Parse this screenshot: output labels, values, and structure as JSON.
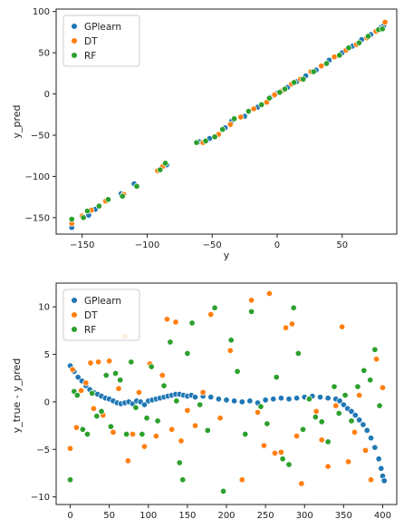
{
  "colors": {
    "GPlearn": "#1f77b4",
    "DT": "#ff7f0e",
    "RF": "#2ca02c"
  },
  "chart_data": [
    {
      "type": "scatter",
      "xlabel": "y",
      "ylabel": "y_pred",
      "xlim": [
        -170,
        92
      ],
      "ylim": [
        -170,
        103
      ],
      "xticks": [
        -150,
        -100,
        -50,
        0,
        50
      ],
      "yticks": [
        -150,
        -100,
        -50,
        0,
        50,
        100
      ],
      "xtick_labels": [
        "−150",
        "−100",
        "−50",
        "0",
        "50"
      ],
      "ytick_labels": [
        "−150",
        "−100",
        "−50",
        "0",
        "50",
        "100"
      ],
      "legend": {
        "placement": "top-left",
        "entries": [
          "GPlearn",
          "DT",
          "RF"
        ]
      },
      "series": [
        {
          "name": "GPlearn",
          "points": [
            [
              -158,
              -162
            ],
            [
              -145,
              -147
            ],
            [
              -140,
              -140
            ],
            [
              -120,
              -121
            ],
            [
              -110,
              -109
            ],
            [
              -85,
              -86
            ],
            [
              -60,
              -58
            ],
            [
              -52,
              -54
            ],
            [
              -40,
              -41
            ],
            [
              -35,
              -33
            ],
            [
              -25,
              -27
            ],
            [
              -15,
              -16
            ],
            [
              -5,
              -4
            ],
            [
              0,
              1
            ],
            [
              8,
              8
            ],
            [
              15,
              15
            ],
            [
              22,
              22
            ],
            [
              30,
              29
            ],
            [
              40,
              41
            ],
            [
              50,
              50
            ],
            [
              58,
              58
            ],
            [
              65,
              66
            ],
            [
              72,
              72
            ],
            [
              80,
              81
            ],
            [
              82,
              83
            ]
          ]
        },
        {
          "name": "DT",
          "points": [
            [
              -158,
              -157
            ],
            [
              -150,
              -148
            ],
            [
              -143,
              -141
            ],
            [
              -132,
              -130
            ],
            [
              -118,
              -122
            ],
            [
              -92,
              -93
            ],
            [
              -88,
              -88
            ],
            [
              -57,
              -59
            ],
            [
              -45,
              -49
            ],
            [
              -36,
              -37
            ],
            [
              -28,
              -28
            ],
            [
              -18,
              -18
            ],
            [
              -8,
              -10
            ],
            [
              -2,
              -1
            ],
            [
              4,
              4
            ],
            [
              11,
              12
            ],
            [
              18,
              18
            ],
            [
              26,
              27
            ],
            [
              34,
              34
            ],
            [
              44,
              45
            ],
            [
              53,
              53
            ],
            [
              61,
              60
            ],
            [
              69,
              68
            ],
            [
              76,
              76
            ],
            [
              83,
              87
            ]
          ]
        },
        {
          "name": "RF",
          "points": [
            [
              -158,
              -152
            ],
            [
              -149,
              -150
            ],
            [
              -146,
              -142
            ],
            [
              -137,
              -136
            ],
            [
              -130,
              -128
            ],
            [
              -119,
              -124
            ],
            [
              -108,
              -112
            ],
            [
              -90,
              -92
            ],
            [
              -86,
              -84
            ],
            [
              -62,
              -59
            ],
            [
              -55,
              -57
            ],
            [
              -48,
              -52
            ],
            [
              -42,
              -43
            ],
            [
              -33,
              -30
            ],
            [
              -22,
              -21
            ],
            [
              -12,
              -13
            ],
            [
              -6,
              -5
            ],
            [
              2,
              2
            ],
            [
              6,
              6
            ],
            [
              13,
              14
            ],
            [
              20,
              18
            ],
            [
              28,
              27
            ],
            [
              38,
              37
            ],
            [
              48,
              47
            ],
            [
              55,
              56
            ],
            [
              63,
              62
            ],
            [
              70,
              70
            ],
            [
              78,
              78
            ],
            [
              81,
              79
            ]
          ]
        }
      ]
    },
    {
      "type": "scatter",
      "xlabel": "",
      "ylabel": "y_true - y_pred",
      "xlim": [
        -18,
        418
      ],
      "ylim": [
        -10.8,
        12.5
      ],
      "xticks": [
        0,
        50,
        100,
        150,
        200,
        250,
        300,
        350,
        400
      ],
      "yticks": [
        -10,
        -5,
        0,
        5,
        10
      ],
      "xtick_labels": [
        "0",
        "50",
        "100",
        "150",
        "200",
        "250",
        "300",
        "350",
        "400"
      ],
      "ytick_labels": [
        "−10",
        "−5",
        "0",
        "5",
        "10"
      ],
      "legend": {
        "placement": "top-left",
        "entries": [
          "GPlearn",
          "DT",
          "RF"
        ]
      },
      "series": [
        {
          "name": "GPlearn",
          "points": [
            [
              0,
              3.8
            ],
            [
              5,
              3.2
            ],
            [
              10,
              2.6
            ],
            [
              15,
              2.2
            ],
            [
              20,
              1.7
            ],
            [
              25,
              1.3
            ],
            [
              30,
              1.0
            ],
            [
              35,
              0.8
            ],
            [
              40,
              0.6
            ],
            [
              45,
              0.4
            ],
            [
              50,
              0.3
            ],
            [
              55,
              0.1
            ],
            [
              60,
              -0.1
            ],
            [
              65,
              -0.2
            ],
            [
              70,
              -0.1
            ],
            [
              75,
              0.0
            ],
            [
              80,
              -0.2
            ],
            [
              85,
              0.1
            ],
            [
              90,
              0.0
            ],
            [
              95,
              -0.3
            ],
            [
              100,
              0.1
            ],
            [
              105,
              0.2
            ],
            [
              110,
              0.3
            ],
            [
              115,
              0.4
            ],
            [
              120,
              0.5
            ],
            [
              125,
              0.6
            ],
            [
              130,
              0.7
            ],
            [
              135,
              0.8
            ],
            [
              140,
              0.8
            ],
            [
              145,
              0.7
            ],
            [
              150,
              0.6
            ],
            [
              155,
              0.7
            ],
            [
              160,
              0.5
            ],
            [
              170,
              0.6
            ],
            [
              180,
              0.5
            ],
            [
              190,
              0.3
            ],
            [
              200,
              0.2
            ],
            [
              210,
              0.1
            ],
            [
              220,
              0.0
            ],
            [
              230,
              0.1
            ],
            [
              240,
              -0.1
            ],
            [
              250,
              0.2
            ],
            [
              260,
              0.3
            ],
            [
              270,
              0.4
            ],
            [
              280,
              0.3
            ],
            [
              290,
              0.4
            ],
            [
              300,
              0.5
            ],
            [
              310,
              0.6
            ],
            [
              320,
              0.5
            ],
            [
              330,
              0.4
            ],
            [
              340,
              0.3
            ],
            [
              345,
              0.1
            ],
            [
              350,
              -0.3
            ],
            [
              355,
              -0.7
            ],
            [
              360,
              -1.0
            ],
            [
              365,
              -1.4
            ],
            [
              370,
              -1.9
            ],
            [
              375,
              -2.4
            ],
            [
              380,
              -3.0
            ],
            [
              385,
              -3.8
            ],
            [
              390,
              -4.8
            ],
            [
              395,
              -6.0
            ],
            [
              398,
              -7.0
            ],
            [
              400,
              -7.8
            ],
            [
              402,
              -8.3
            ]
          ]
        },
        {
          "name": "DT",
          "points": [
            [
              0,
              -4.9
            ],
            [
              3,
              3.4
            ],
            [
              8,
              -2.7
            ],
            [
              14,
              1.2
            ],
            [
              20,
              2.0
            ],
            [
              26,
              4.1
            ],
            [
              30,
              -0.7
            ],
            [
              36,
              4.2
            ],
            [
              42,
              -1.4
            ],
            [
              50,
              4.3
            ],
            [
              55,
              -3.2
            ],
            [
              62,
              1.4
            ],
            [
              70,
              6.9
            ],
            [
              74,
              -6.2
            ],
            [
              80,
              -3.4
            ],
            [
              88,
              1.0
            ],
            [
              95,
              -4.7
            ],
            [
              102,
              4.0
            ],
            [
              110,
              -3.6
            ],
            [
              118,
              2.8
            ],
            [
              124,
              8.7
            ],
            [
              130,
              -2.9
            ],
            [
              135,
              8.4
            ],
            [
              142,
              -4.1
            ],
            [
              150,
              -0.9
            ],
            [
              160,
              -2.5
            ],
            [
              170,
              1.0
            ],
            [
              180,
              9.2
            ],
            [
              192,
              -1.7
            ],
            [
              205,
              5.4
            ],
            [
              220,
              -8.2
            ],
            [
              232,
              10.7
            ],
            [
              240,
              -1.1
            ],
            [
              248,
              -4.6
            ],
            [
              255,
              11.4
            ],
            [
              262,
              -5.4
            ],
            [
              270,
              -5.3
            ],
            [
              276,
              7.8
            ],
            [
              284,
              8.2
            ],
            [
              290,
              -3.6
            ],
            [
              296,
              -8.6
            ],
            [
              305,
              0.3
            ],
            [
              315,
              -1.0
            ],
            [
              322,
              -4.0
            ],
            [
              330,
              -6.8
            ],
            [
              340,
              -0.4
            ],
            [
              348,
              7.9
            ],
            [
              356,
              -6.3
            ],
            [
              364,
              -3.2
            ],
            [
              370,
              0.7
            ],
            [
              378,
              -5.1
            ],
            [
              385,
              -8.2
            ],
            [
              392,
              4.5
            ],
            [
              400,
              1.5
            ]
          ]
        },
        {
          "name": "RF",
          "points": [
            [
              0,
              -8.2
            ],
            [
              5,
              1.1
            ],
            [
              9,
              0.7
            ],
            [
              16,
              -2.9
            ],
            [
              22,
              -3.4
            ],
            [
              28,
              0.9
            ],
            [
              34,
              -1.5
            ],
            [
              40,
              -1.0
            ],
            [
              46,
              2.8
            ],
            [
              52,
              -2.6
            ],
            [
              58,
              3.0
            ],
            [
              64,
              2.3
            ],
            [
              72,
              -3.4
            ],
            [
              78,
              4.2
            ],
            [
              84,
              -0.6
            ],
            [
              92,
              -3.4
            ],
            [
              98,
              -1.7
            ],
            [
              104,
              3.7
            ],
            [
              112,
              -2.0
            ],
            [
              120,
              1.7
            ],
            [
              128,
              6.3
            ],
            [
              136,
              0.1
            ],
            [
              140,
              -6.4
            ],
            [
              144,
              -8.2
            ],
            [
              150,
              5.1
            ],
            [
              156,
              8.3
            ],
            [
              166,
              -0.3
            ],
            [
              176,
              -3.0
            ],
            [
              185,
              9.9
            ],
            [
              196,
              -9.4
            ],
            [
              206,
              6.5
            ],
            [
              214,
              3.2
            ],
            [
              224,
              -3.4
            ],
            [
              232,
              9.5
            ],
            [
              244,
              -0.5
            ],
            [
              252,
              -2.3
            ],
            [
              264,
              2.6
            ],
            [
              272,
              -6.0
            ],
            [
              280,
              -6.6
            ],
            [
              286,
              9.9
            ],
            [
              292,
              5.1
            ],
            [
              298,
              -2.9
            ],
            [
              306,
              0.3
            ],
            [
              314,
              -1.6
            ],
            [
              322,
              -2.1
            ],
            [
              330,
              -4.2
            ],
            [
              338,
              1.6
            ],
            [
              344,
              -1.2
            ],
            [
              352,
              0.7
            ],
            [
              360,
              -2.0
            ],
            [
              368,
              1.6
            ],
            [
              376,
              3.3
            ],
            [
              384,
              2.3
            ],
            [
              390,
              5.5
            ],
            [
              396,
              -0.4
            ]
          ]
        }
      ]
    }
  ]
}
